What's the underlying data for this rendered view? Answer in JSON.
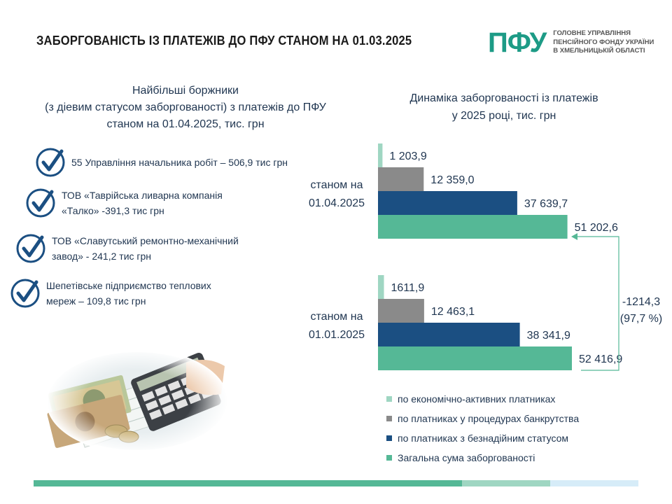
{
  "title": "ЗАБОРГОВАНІСТЬ ІЗ ПЛАТЕЖІВ ДО ПФУ СТАНОМ НА 01.03.2025",
  "logo": {
    "mark": "ПФУ",
    "lines": [
      "ГОЛОВНЕ УПРАВЛІННЯ",
      "ПЕНСІЙНОГО ФОНДУ УКРАЇНИ",
      "В ХМЕЛЬНИЦЬКІЙ ОБЛАСТІ"
    ]
  },
  "debtors": {
    "heading": [
      "Найбільші боржники",
      "(з діевим статусом заборгованості) з платежів до ПФУ",
      "станом на 01.04.2025, тис. грн"
    ],
    "items": [
      {
        "lines": [
          "55 Управління начальника робіт – 506,9 тис грн"
        ]
      },
      {
        "lines": [
          "ТОВ «Таврійська ливарна компанія",
          "«Талко» -391,3 тис грн"
        ]
      },
      {
        "lines": [
          "ТОВ «Славутський ремонтно-механічний",
          "завод» - 241,2 тис грн"
        ]
      },
      {
        "lines": [
          "Шепетівське підприємство теплових",
          "мереж – 109,8 тис грн"
        ]
      }
    ]
  },
  "chart_data": {
    "type": "bar",
    "orientation": "horizontal",
    "title": [
      "Динаміка заборгованості із платежів",
      "у 2025 році, тис. грн"
    ],
    "groups": [
      {
        "label": [
          "станом на",
          "01.04.2025"
        ],
        "values": [
          1203.9,
          12359.0,
          37639.7,
          51202.6
        ],
        "value_labels": [
          "1 203,9",
          "12 359,0",
          "37 639,7",
          "51 202,6"
        ]
      },
      {
        "label": [
          "станом на",
          "01.01.2025"
        ],
        "values": [
          1611.9,
          12463.1,
          38341.9,
          52416.9
        ],
        "value_labels": [
          "1611,9",
          "12 463,1",
          "38 341,9",
          "52 416,9"
        ]
      }
    ],
    "series": [
      {
        "name": "по економічно-активних платниках",
        "color": "#9fd6c2"
      },
      {
        "name": "по платниках у процедурах банкрутства",
        "color": "#8a8a8a"
      },
      {
        "name": "по платниках з безнадійним статусом",
        "color": "#1b4f82"
      },
      {
        "name": "Загальна сума заборгованості",
        "color": "#55b896"
      }
    ],
    "annotation": [
      "-1214,3",
      "(97,7 %)"
    ],
    "grid": false,
    "legend_position": "bottom"
  },
  "footer_colors": [
    "#55b896",
    "#9fd6c2",
    "#d6ecf8"
  ]
}
